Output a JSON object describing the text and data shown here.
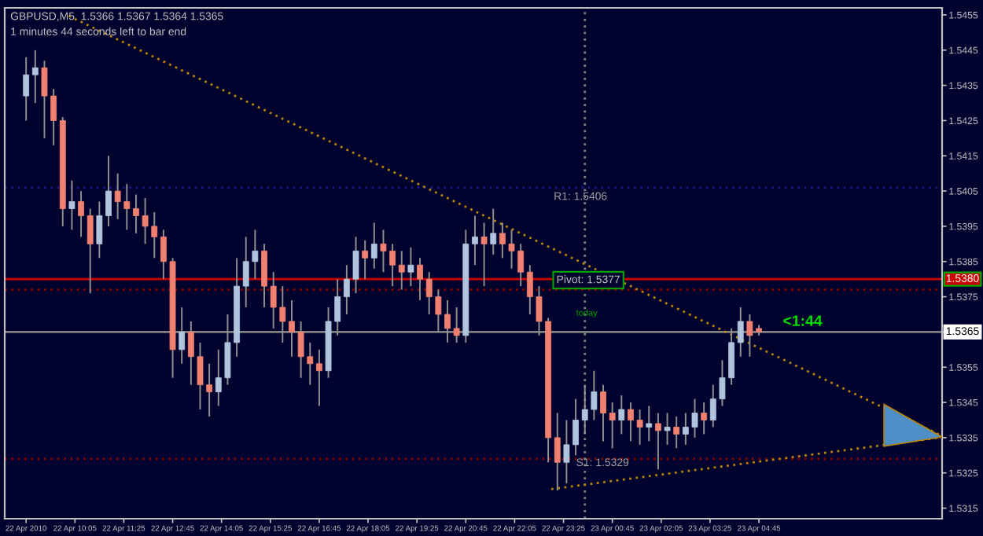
{
  "chart_data": {
    "type": "candlestick",
    "title": "GBPUSD,M5  1.5366 1.5367 1.5364 1.5365",
    "subtitle": "1 minutes 44 seconds left to bar end",
    "x": [
      "2010-04-22T08:45",
      "2010-04-22T09:00",
      "2010-04-22T09:15",
      "2010-04-22T09:30",
      "2010-04-22T09:45",
      "2010-04-22T10:00",
      "2010-04-22T10:15",
      "2010-04-22T10:30",
      "2010-04-22T10:45",
      "2010-04-22T11:00",
      "2010-04-22T11:15",
      "2010-04-22T11:30",
      "2010-04-22T11:45",
      "2010-04-22T12:00",
      "2010-04-22T12:15",
      "2010-04-22T12:30",
      "2010-04-22T12:45",
      "2010-04-22T13:00",
      "2010-04-22T13:15",
      "2010-04-22T13:30",
      "2010-04-22T13:45",
      "2010-04-22T14:00",
      "2010-04-22T14:15",
      "2010-04-22T14:30",
      "2010-04-22T14:45",
      "2010-04-22T15:00",
      "2010-04-22T15:15",
      "2010-04-22T15:30",
      "2010-04-22T15:45",
      "2010-04-22T16:00",
      "2010-04-22T16:15",
      "2010-04-22T16:30",
      "2010-04-22T16:45",
      "2010-04-22T17:00",
      "2010-04-22T17:15",
      "2010-04-22T17:30",
      "2010-04-22T17:45",
      "2010-04-22T18:00",
      "2010-04-22T18:15",
      "2010-04-22T18:30",
      "2010-04-22T18:45",
      "2010-04-22T19:00",
      "2010-04-22T19:15",
      "2010-04-22T19:30",
      "2010-04-22T19:45",
      "2010-04-22T20:00",
      "2010-04-22T20:15",
      "2010-04-22T20:30",
      "2010-04-22T20:45",
      "2010-04-22T21:00",
      "2010-04-22T21:15",
      "2010-04-22T21:30",
      "2010-04-22T21:45",
      "2010-04-22T22:00",
      "2010-04-22T22:15",
      "2010-04-22T22:30",
      "2010-04-22T22:45",
      "2010-04-22T23:00",
      "2010-04-22T23:15",
      "2010-04-22T23:30",
      "2010-04-22T23:45",
      "2010-04-23T00:00",
      "2010-04-23T00:15",
      "2010-04-23T00:30",
      "2010-04-23T00:45",
      "2010-04-23T01:00",
      "2010-04-23T01:15",
      "2010-04-23T01:30",
      "2010-04-23T01:45",
      "2010-04-23T02:00",
      "2010-04-23T02:15",
      "2010-04-23T02:30",
      "2010-04-23T02:45",
      "2010-04-23T03:00",
      "2010-04-23T03:15",
      "2010-04-23T03:30",
      "2010-04-23T03:45",
      "2010-04-23T04:00",
      "2010-04-23T04:15",
      "2010-04-23T04:30",
      "2010-04-23T04:45"
    ],
    "ohlc": [
      [
        1.5432,
        1.5443,
        1.5425,
        1.5438
      ],
      [
        1.5438,
        1.5445,
        1.543,
        1.544
      ],
      [
        1.544,
        1.5442,
        1.542,
        1.5432
      ],
      [
        1.5432,
        1.5434,
        1.5418,
        1.5425
      ],
      [
        1.5425,
        1.5426,
        1.5395,
        1.54
      ],
      [
        1.54,
        1.5408,
        1.5394,
        1.5402
      ],
      [
        1.5402,
        1.5405,
        1.5392,
        1.5398
      ],
      [
        1.5398,
        1.54,
        1.5376,
        1.539
      ],
      [
        1.539,
        1.5402,
        1.5386,
        1.5398
      ],
      [
        1.5398,
        1.5415,
        1.5395,
        1.5405
      ],
      [
        1.5405,
        1.541,
        1.5397,
        1.5402
      ],
      [
        1.5402,
        1.5407,
        1.5394,
        1.54
      ],
      [
        1.54,
        1.5404,
        1.5393,
        1.5398
      ],
      [
        1.5398,
        1.5403,
        1.539,
        1.5395
      ],
      [
        1.5395,
        1.5399,
        1.5386,
        1.5392
      ],
      [
        1.5392,
        1.5394,
        1.538,
        1.5385
      ],
      [
        1.5385,
        1.5386,
        1.5352,
        1.536
      ],
      [
        1.536,
        1.5372,
        1.5356,
        1.5365
      ],
      [
        1.5365,
        1.5368,
        1.535,
        1.5358
      ],
      [
        1.5358,
        1.5362,
        1.5343,
        1.535
      ],
      [
        1.535,
        1.5356,
        1.5341,
        1.5348
      ],
      [
        1.5348,
        1.536,
        1.5344,
        1.5352
      ],
      [
        1.5352,
        1.537,
        1.535,
        1.5362
      ],
      [
        1.5362,
        1.5386,
        1.5358,
        1.5378
      ],
      [
        1.5378,
        1.5392,
        1.5372,
        1.5385
      ],
      [
        1.5385,
        1.5394,
        1.538,
        1.5388
      ],
      [
        1.5388,
        1.539,
        1.5372,
        1.5378
      ],
      [
        1.5378,
        1.5382,
        1.5366,
        1.5372
      ],
      [
        1.5372,
        1.5378,
        1.5362,
        1.5368
      ],
      [
        1.5368,
        1.5374,
        1.5358,
        1.5365
      ],
      [
        1.5365,
        1.5368,
        1.5352,
        1.5358
      ],
      [
        1.5358,
        1.5362,
        1.535,
        1.5356
      ],
      [
        1.5356,
        1.536,
        1.5344,
        1.5354
      ],
      [
        1.5354,
        1.5372,
        1.5352,
        1.5368
      ],
      [
        1.5368,
        1.538,
        1.5364,
        1.5375
      ],
      [
        1.5375,
        1.5384,
        1.537,
        1.538
      ],
      [
        1.538,
        1.5392,
        1.5376,
        1.5388
      ],
      [
        1.5388,
        1.5391,
        1.538,
        1.5386
      ],
      [
        1.5386,
        1.5396,
        1.5383,
        1.539
      ],
      [
        1.539,
        1.5394,
        1.5382,
        1.5388
      ],
      [
        1.5388,
        1.539,
        1.5378,
        1.5384
      ],
      [
        1.5384,
        1.5388,
        1.5377,
        1.5382
      ],
      [
        1.5382,
        1.5389,
        1.5378,
        1.5384
      ],
      [
        1.5384,
        1.5386,
        1.5374,
        1.538
      ],
      [
        1.538,
        1.5382,
        1.537,
        1.5375
      ],
      [
        1.5375,
        1.5377,
        1.5365,
        1.537
      ],
      [
        1.537,
        1.5374,
        1.5362,
        1.5366
      ],
      [
        1.5366,
        1.5372,
        1.5362,
        1.5364
      ],
      [
        1.5364,
        1.5394,
        1.5362,
        1.539
      ],
      [
        1.539,
        1.5398,
        1.5384,
        1.5392
      ],
      [
        1.5392,
        1.5396,
        1.5378,
        1.539
      ],
      [
        1.539,
        1.54,
        1.5387,
        1.5393
      ],
      [
        1.5393,
        1.5396,
        1.5386,
        1.539
      ],
      [
        1.539,
        1.5394,
        1.5383,
        1.5388
      ],
      [
        1.5388,
        1.539,
        1.5378,
        1.5382
      ],
      [
        1.5382,
        1.5384,
        1.537,
        1.5375
      ],
      [
        1.5375,
        1.5378,
        1.5364,
        1.5368
      ],
      [
        1.5368,
        1.5369,
        1.5328,
        1.5335
      ],
      [
        1.5335,
        1.5342,
        1.532,
        1.5328
      ],
      [
        1.5328,
        1.534,
        1.5322,
        1.5333
      ],
      [
        1.5333,
        1.5346,
        1.533,
        1.534
      ],
      [
        1.534,
        1.535,
        1.5336,
        1.5343
      ],
      [
        1.5343,
        1.5354,
        1.534,
        1.5348
      ],
      [
        1.5348,
        1.535,
        1.5334,
        1.5342
      ],
      [
        1.5342,
        1.5345,
        1.5332,
        1.534
      ],
      [
        1.534,
        1.5347,
        1.5336,
        1.5343
      ],
      [
        1.5343,
        1.5345,
        1.5334,
        1.534
      ],
      [
        1.534,
        1.5343,
        1.5333,
        1.5338
      ],
      [
        1.5338,
        1.5344,
        1.5334,
        1.5339
      ],
      [
        1.5339,
        1.5342,
        1.5326,
        1.5337
      ],
      [
        1.5337,
        1.5342,
        1.5333,
        1.5338
      ],
      [
        1.5338,
        1.5341,
        1.5332,
        1.5336
      ],
      [
        1.5336,
        1.5342,
        1.5333,
        1.5338
      ],
      [
        1.5338,
        1.5346,
        1.5335,
        1.5342
      ],
      [
        1.5342,
        1.5345,
        1.5336,
        1.534
      ],
      [
        1.534,
        1.535,
        1.5338,
        1.5346
      ],
      [
        1.5346,
        1.5357,
        1.5344,
        1.5352
      ],
      [
        1.5352,
        1.5366,
        1.535,
        1.5362
      ],
      [
        1.5362,
        1.5372,
        1.5358,
        1.5368
      ],
      [
        1.5368,
        1.537,
        1.5358,
        1.5364
      ],
      [
        1.5366,
        1.5367,
        1.5364,
        1.5365
      ]
    ],
    "series": [
      {
        "type": "line",
        "color": "#b8860b",
        "line_style": "dotted",
        "x": [
          "2010-04-22T09:55",
          "2010-04-23T09:45"
        ],
        "values": [
          1.54547,
          1.53355
        ]
      },
      {
        "type": "line",
        "color": "#b8860b",
        "line_style": "dotted",
        "x": [
          "2010-04-22T23:05",
          "2010-04-23T09:45"
        ],
        "values": [
          1.53204,
          1.53351
        ]
      }
    ],
    "xlim": [
      "2010-04-22T08:10",
      "2010-04-23T09:45"
    ],
    "ylim": [
      1.5312,
      1.5457
    ],
    "xticks": [
      {
        "value": "2010-04-22T08:45",
        "label": "22 Apr 2010"
      },
      {
        "value": "2010-04-22T10:05",
        "label": "22 Apr 10:05"
      },
      {
        "value": "2010-04-22T11:25",
        "label": "22 Apr 11:25"
      },
      {
        "value": "2010-04-22T12:45",
        "label": "22 Apr 12:45"
      },
      {
        "value": "2010-04-22T14:05",
        "label": "22 Apr 14:05"
      },
      {
        "value": "2010-04-22T15:25",
        "label": "22 Apr 15:25"
      },
      {
        "value": "2010-04-22T16:45",
        "label": "22 Apr 16:45"
      },
      {
        "value": "2010-04-22T18:05",
        "label": "22 Apr 18:05"
      },
      {
        "value": "2010-04-22T19:25",
        "label": "22 Apr 19:25"
      },
      {
        "value": "2010-04-22T20:45",
        "label": "22 Apr 20:45"
      },
      {
        "value": "2010-04-22T22:05",
        "label": "22 Apr 22:05"
      },
      {
        "value": "2010-04-22T23:25",
        "label": "22 Apr 23:25"
      },
      {
        "value": "2010-04-23T00:45",
        "label": "23 Apr 00:45"
      },
      {
        "value": "2010-04-23T02:05",
        "label": "23 Apr 02:05"
      },
      {
        "value": "2010-04-23T03:25",
        "label": "23 Apr 03:25"
      },
      {
        "value": "2010-04-23T04:45",
        "label": "23 Apr 04:45"
      }
    ],
    "yticks": [
      1.5315,
      1.5325,
      1.5335,
      1.5345,
      1.5355,
      1.5365,
      1.5375,
      1.5385,
      1.5395,
      1.5405,
      1.5415,
      1.5425,
      1.5435,
      1.5445,
      1.5455
    ],
    "ref_lines": [
      {
        "axis": "y",
        "value": 1.538,
        "label": "1.5380",
        "color": "#cc0000",
        "line_style": "solid"
      },
      {
        "axis": "y",
        "value": 1.5365,
        "label": "1.5365",
        "color": "#808080",
        "line_style": "solid"
      },
      {
        "axis": "y",
        "value": 1.5377,
        "color": "#8b0000",
        "line_style": "dotted"
      },
      {
        "axis": "y",
        "value": 1.5329,
        "color": "#8b0000",
        "line_style": "dotted"
      },
      {
        "axis": "y",
        "value": 1.5406,
        "color": "#1a1a80",
        "line_style": "dotted"
      },
      {
        "axis": "x",
        "value": "2010-04-23T00:00",
        "color": "#808080",
        "line_style": "dotted"
      }
    ],
    "annotations": [
      {
        "text": "R1: 1.5406",
        "x": "2010-04-23T00:00",
        "y": 1.5406
      },
      {
        "text": "Pivot: 1.5377",
        "x": "2010-04-23T00:00",
        "y": 1.5377
      },
      {
        "text": "today",
        "x": "2010-04-23T00:00",
        "y": 1.5377
      },
      {
        "text": "S1: 1.5329",
        "x": "2010-04-23T00:00",
        "y": 1.5329
      },
      "<1:44"
    ],
    "grid": false,
    "legend": false
  }
}
